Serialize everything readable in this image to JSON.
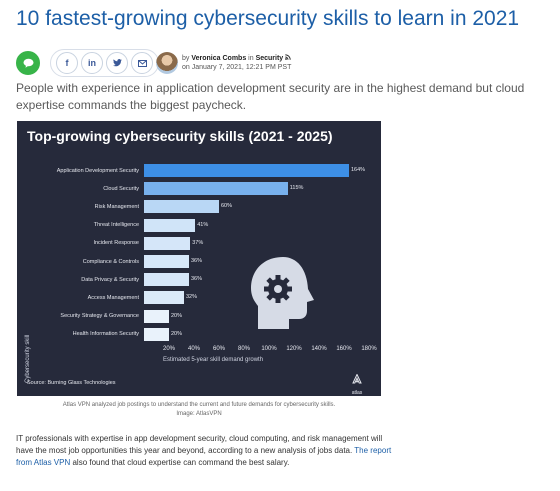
{
  "article": {
    "headline": "10 fastest-growing cybersecurity skills to learn in 2021",
    "byline_prefix": "by",
    "author": "Veronica Combs",
    "byline_in": "in",
    "section": "Security",
    "date": "on January 7, 2021, 12:21 PM PST",
    "deck": "People with experience in application development security are in the highest demand but cloud expertise commands the biggest paycheck.",
    "caption_line1": "Atlas VPN analyzed job postings to understand the current and future demands for cybersecurity skills.",
    "caption_line2": "Image: AtlasVPN",
    "body_part1": "IT professionals with expertise in app development security, cloud computing, and risk management will have the most job opportunities this year and beyond, according to a new analysis of jobs data.",
    "body_link": "The report from Atlas VPN",
    "body_part2": "also found that cloud expertise can command the best salary."
  },
  "share": {
    "comment_icon": "comment-icon",
    "facebook_glyph": "f",
    "linkedin_glyph": "in",
    "twitter_glyph": "🐦",
    "email_glyph": "✉",
    "comment_color": "#38b449",
    "link_color": "#1d5fa7"
  },
  "chart_data": {
    "type": "bar",
    "orientation": "horizontal",
    "title": "Top-growing cybersecurity skills (2021 - 2025)",
    "xlabel": "Estimated 5-year skill demand growth",
    "ylabel": "Cybersecurity skill",
    "source": "Source: Burning Glass Technologies",
    "logo_text": "atlas",
    "categories": [
      "Application Development Security",
      "Cloud Security",
      "Risk Management",
      "Threat Intelligence",
      "Incident Response",
      "Compliance & Controls",
      "Data Privacy & Security",
      "Access Management",
      "Security Strategy & Governance",
      "Health Information Security"
    ],
    "values": [
      164,
      115,
      60,
      41,
      37,
      36,
      36,
      32,
      20,
      20
    ],
    "value_labels": [
      "164%",
      "115%",
      "60%",
      "41%",
      "37%",
      "36%",
      "36%",
      "32%",
      "20%",
      "20%"
    ],
    "x_ticks": [
      "20%",
      "40%",
      "60%",
      "80%",
      "100%",
      "120%",
      "140%",
      "160%",
      "180%"
    ],
    "xlim": [
      0,
      180
    ],
    "grid": false,
    "background": "#262a3b",
    "bar_color_max": "#3d8fe6",
    "bar_color_min": "#e9f2fb"
  }
}
